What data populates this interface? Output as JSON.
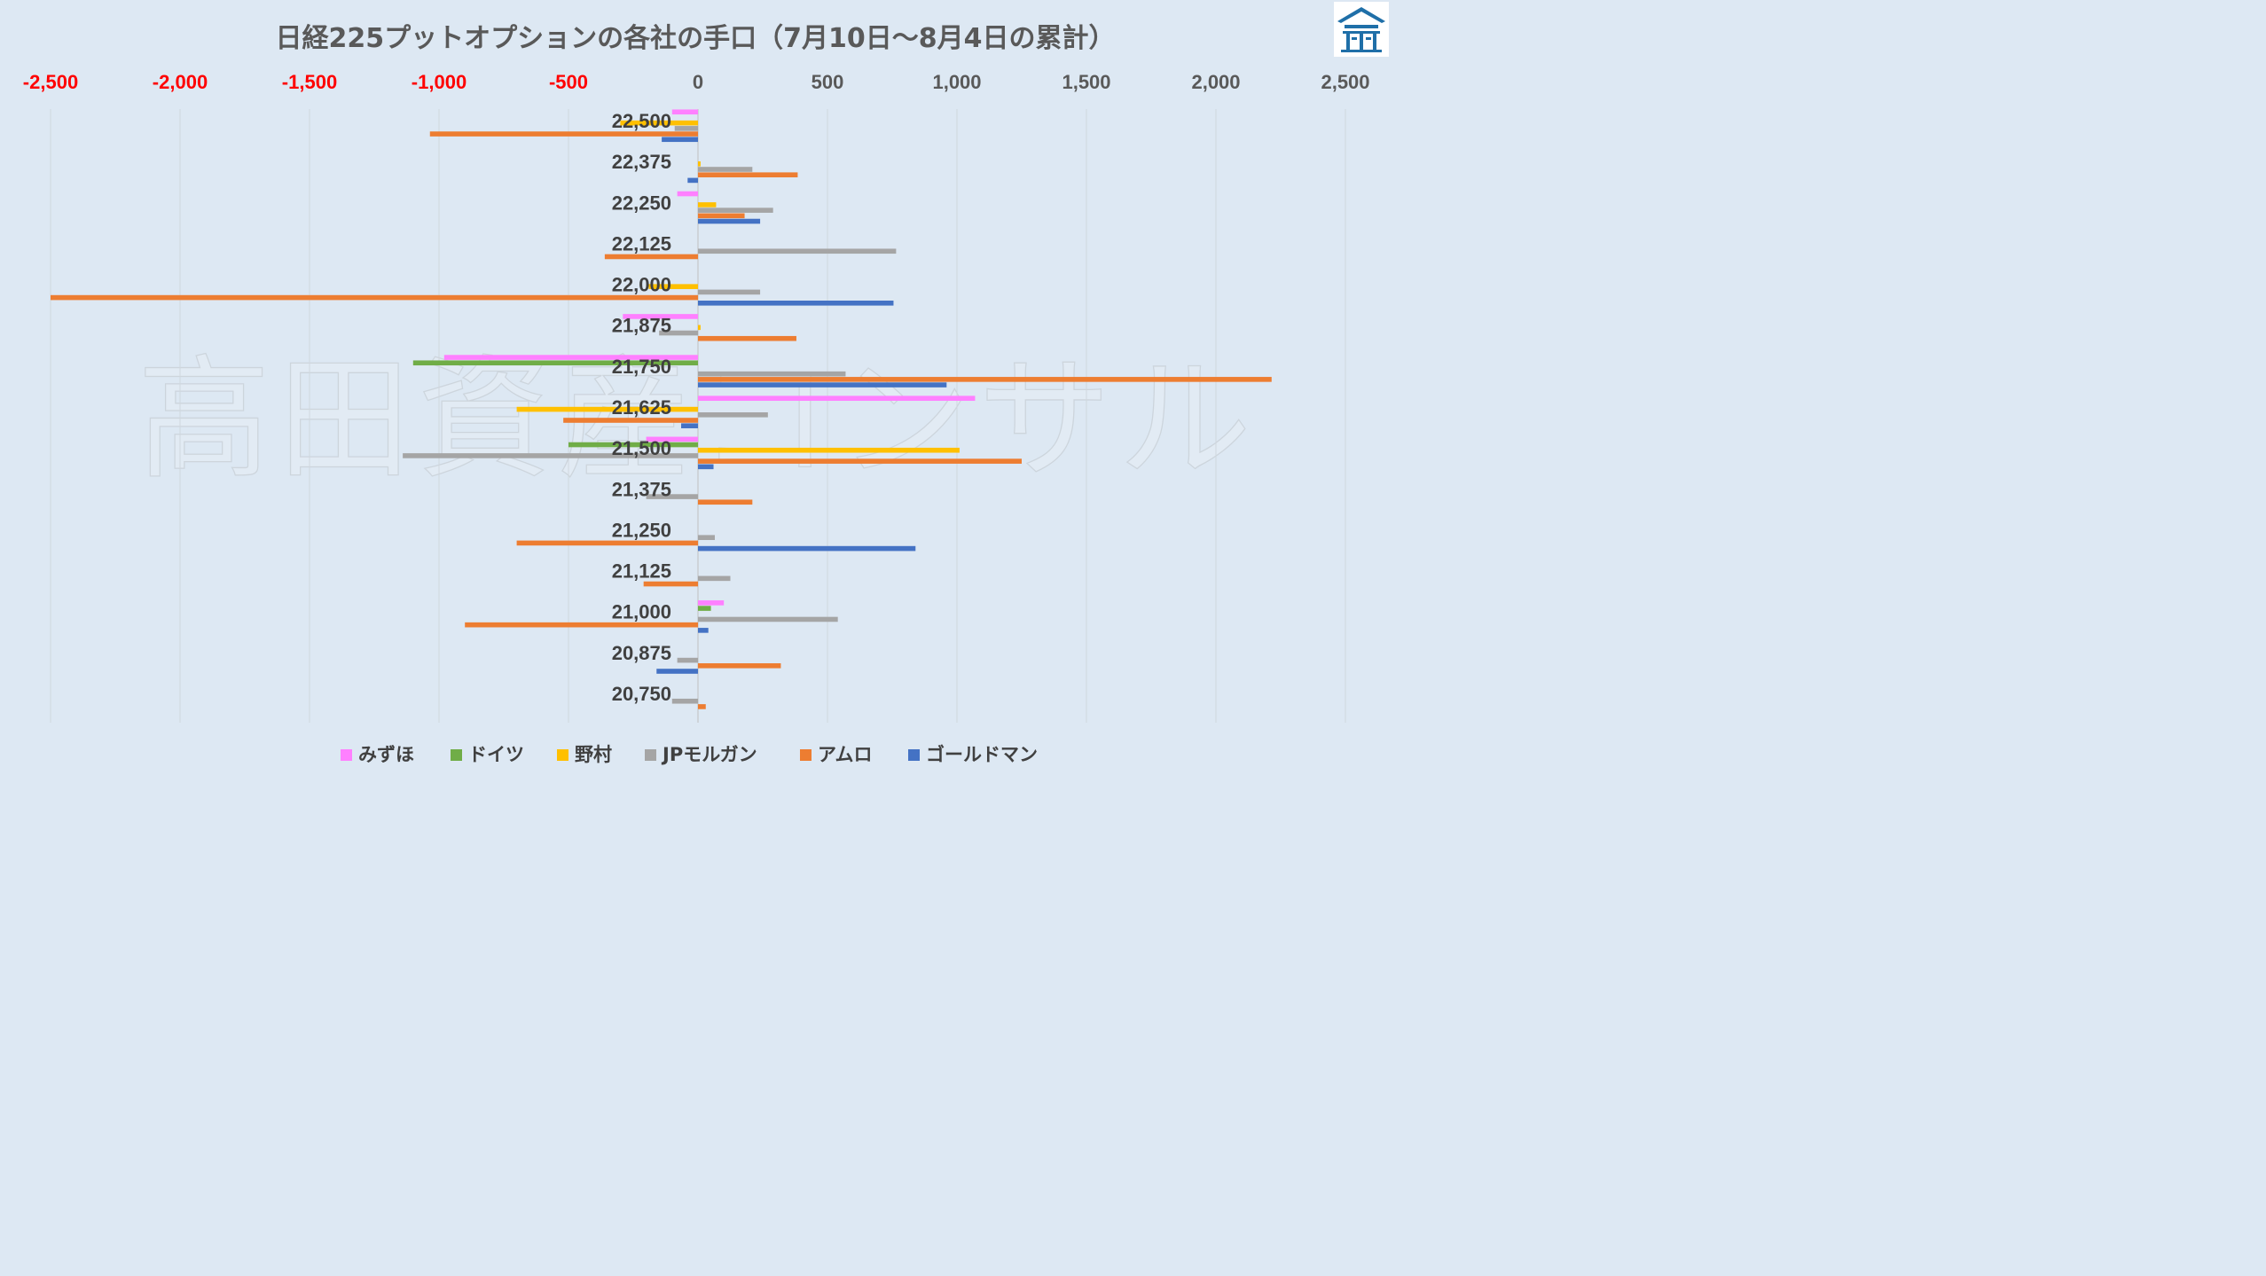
{
  "chart_data": {
    "type": "bar",
    "orientation": "horizontal",
    "title": "日経225プットオプションの各社の手口（7月10日～8月4日の累計）",
    "x_ticks": [
      "-2,500",
      "-2,000",
      "-1,500",
      "-1,000",
      "-500",
      "0",
      "500",
      "1,000",
      "1,500",
      "2,000",
      "2,500"
    ],
    "x_tick_values": [
      -2500,
      -2000,
      -1500,
      -1000,
      -500,
      0,
      500,
      1000,
      1500,
      2000,
      2500
    ],
    "xlim": [
      -2500,
      2500
    ],
    "negative_tick_color": "#ff0000",
    "positive_tick_color": "#595959",
    "grid": true,
    "legend_position": "bottom",
    "categories": [
      "22,500",
      "22,375",
      "22,250",
      "22,125",
      "22,000",
      "21,875",
      "21,750",
      "21,625",
      "21,500",
      "21,375",
      "21,250",
      "21,125",
      "21,000",
      "20,875",
      "20,750"
    ],
    "series": [
      {
        "name": "みずほ",
        "color": "#ff80ff",
        "values": [
          -100,
          0,
          -80,
          0,
          0,
          -290,
          -980,
          1070,
          -200,
          0,
          0,
          0,
          100,
          0,
          0
        ]
      },
      {
        "name": "ドイツ",
        "color": "#70ad47",
        "values": [
          0,
          0,
          0,
          0,
          0,
          0,
          -1100,
          0,
          -500,
          0,
          0,
          0,
          50,
          0,
          0
        ]
      },
      {
        "name": "野村",
        "color": "#ffc000",
        "values": [
          -300,
          10,
          70,
          0,
          -190,
          10,
          0,
          -700,
          1010,
          0,
          0,
          0,
          0,
          0,
          0
        ]
      },
      {
        "name": "JPモルガン",
        "color": "#a5a5a5",
        "values": [
          -90,
          210,
          290,
          765,
          240,
          -150,
          570,
          270,
          -1140,
          -200,
          65,
          125,
          540,
          -80,
          -100
        ]
      },
      {
        "name": "アムロ",
        "color": "#ed7d31",
        "values": [
          -1035,
          385,
          180,
          -360,
          -2500,
          380,
          2215,
          -520,
          1250,
          210,
          -700,
          -210,
          -900,
          320,
          30
        ]
      },
      {
        "name": "ゴールドマン",
        "color": "#4472c4",
        "values": [
          -140,
          -40,
          240,
          0,
          755,
          0,
          960,
          -65,
          60,
          0,
          840,
          0,
          40,
          -160,
          0
        ]
      }
    ]
  },
  "watermark": {
    "text": "高田資産コンサル"
  }
}
